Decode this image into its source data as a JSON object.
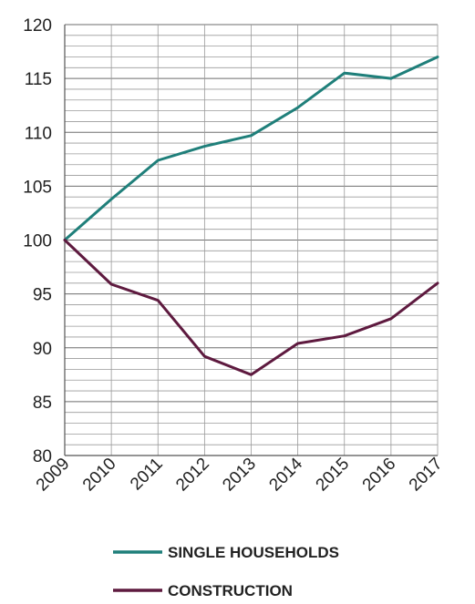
{
  "chart_data": {
    "type": "line",
    "categories": [
      "2009",
      "2010",
      "2011",
      "2012",
      "2013",
      "2014",
      "2015",
      "2016",
      "2017"
    ],
    "series": [
      {
        "name": "SINGLE HOUSEHOLDS",
        "color": "#1f7f7a",
        "values": [
          100,
          103.8,
          107.4,
          108.7,
          109.7,
          112.3,
          115.5,
          115.0,
          117.0
        ]
      },
      {
        "name": "CONSTRUCTION",
        "color": "#5e1a3f",
        "values": [
          100,
          95.9,
          94.4,
          89.2,
          87.5,
          90.4,
          91.1,
          92.7,
          96.0
        ]
      }
    ],
    "ylim": [
      80,
      120
    ],
    "yticks": [
      "80",
      "85",
      "90",
      "95",
      "100",
      "105",
      "110",
      "115",
      "120"
    ],
    "ytick_values": [
      80,
      85,
      90,
      95,
      100,
      105,
      110,
      115,
      120
    ],
    "minor_step": 1,
    "grid": true,
    "legend_position": "bottom"
  }
}
